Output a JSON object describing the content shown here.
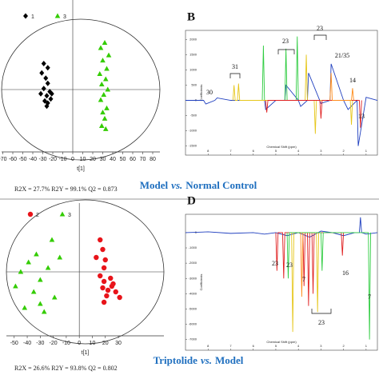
{
  "chart_data": [
    {
      "type": "scatter",
      "xlabel": "t[1]",
      "stats": "R2X = 27.7% R2Y = 99.1% Q2 = 0.873",
      "caption": [
        "Model",
        "vs.",
        "Normal Control"
      ],
      "xlim": [
        -71.2,
        87.2
      ],
      "xticks": [
        -70,
        -60,
        -50,
        -40,
        -30,
        -20,
        -10,
        0,
        10,
        20,
        30,
        40,
        50,
        60,
        70,
        80
      ],
      "ylim": [
        -60,
        80
      ],
      "series": [
        {
          "name": "1",
          "color": "#000000",
          "marker": "diamond",
          "x": [
            -29,
            -25,
            -31,
            -27,
            -25,
            -29,
            -23,
            -26,
            -22,
            -28,
            -25,
            -21,
            -32,
            -26
          ],
          "values": [
            25,
            21,
            16,
            11,
            6,
            1,
            -2,
            -6,
            -9,
            -11,
            -13,
            -4,
            -4,
            -16
          ]
        },
        {
          "name": "3",
          "color": "#33cc00",
          "marker": "triangle",
          "x": [
            32,
            28,
            36,
            30,
            34,
            27,
            33,
            29,
            35,
            31,
            28,
            34,
            30,
            32,
            29,
            33
          ],
          "values": [
            45,
            40,
            33,
            28,
            20,
            15,
            10,
            5,
            0,
            -5,
            -10,
            -18,
            -22,
            -28,
            -35,
            -38
          ]
        }
      ]
    },
    {
      "type": "line",
      "panel": "B",
      "xlabel": "Chemical Shift (ppm)",
      "ylabel": "Coefficients",
      "xlim": [
        9,
        0.5
      ],
      "xticks": [
        8,
        7,
        6,
        5,
        4,
        3,
        2,
        1
      ],
      "ylim": [
        -1800,
        2300
      ],
      "yticks": [
        -1500,
        -1000,
        -500,
        0,
        500,
        1000,
        1500,
        2000
      ],
      "annotations": [
        "30",
        "31",
        "23",
        "23",
        "21/35",
        "14",
        "13"
      ],
      "series": [
        {
          "color": "#1f3fbf",
          "x": [
            9,
            8.2,
            8.1,
            7.7,
            7.6,
            7.0,
            6.0,
            5.5,
            5.45,
            5.0,
            4.6,
            4.55,
            4.0,
            3.9,
            3.6,
            3.55,
            3.0,
            2.6,
            2.55,
            2.0,
            1.8,
            1.4,
            1.35,
            1.0,
            0.5
          ],
          "values": [
            0,
            0,
            -120,
            0,
            80,
            0,
            0,
            0,
            -300,
            0,
            0,
            500,
            0,
            -200,
            0,
            900,
            -100,
            0,
            1200,
            0,
            -300,
            0,
            -1500,
            100,
            0
          ]
        },
        {
          "color": "#2ecc40",
          "x": [
            5.6,
            5.55,
            5.5,
            4.6,
            4.55,
            4.5,
            4.1,
            4.05,
            4.0
          ],
          "values": [
            0,
            1800,
            0,
            0,
            1700,
            0,
            0,
            2100,
            0
          ]
        },
        {
          "color": "#e6c619",
          "x": [
            6.9,
            6.85,
            6.8,
            6.7,
            6.65,
            6.6,
            3.7,
            3.65,
            3.6,
            3.3,
            3.25,
            3.2,
            1.7,
            1.65,
            1.6
          ],
          "values": [
            0,
            500,
            0,
            0,
            550,
            0,
            0,
            1500,
            0,
            0,
            -1100,
            0,
            0,
            -800,
            0
          ]
        },
        {
          "color": "#e02020",
          "x": [
            5.45,
            5.4,
            5.35,
            3.05,
            3.0,
            2.95,
            1.3,
            1.25,
            1.2
          ],
          "values": [
            0,
            -400,
            0,
            0,
            -600,
            0,
            0,
            -900,
            0
          ]
        },
        {
          "color": "#ff8c1a",
          "x": [
            2.6,
            2.55,
            2.5,
            1.65,
            1.6,
            1.55
          ],
          "values": [
            0,
            900,
            0,
            0,
            400,
            0
          ]
        }
      ]
    },
    {
      "type": "scatter",
      "xlabel": "t[1]",
      "stats": "R2X = 26.6% R2Y = 93.8% Q2 = 0.802",
      "caption": [
        "Triptolide",
        "vs.",
        "Model"
      ],
      "xlim": [
        -56,
        65
      ],
      "xticks": [
        -50,
        -40,
        -30,
        -20,
        -10,
        0,
        10,
        20,
        30
      ],
      "ylim": [
        -80,
        78
      ],
      "series": [
        {
          "name": "2",
          "color": "#e8141a",
          "marker": "circle",
          "x": [
            16,
            18,
            13,
            20,
            19,
            16,
            24,
            19,
            25,
            18,
            22,
            26,
            28,
            21,
            19,
            31
          ],
          "values": [
            40,
            28,
            18,
            15,
            5,
            -5,
            -8,
            -12,
            -18,
            -20,
            -23,
            -15,
            -25,
            -30,
            -38,
            -32
          ]
        },
        {
          "name": "3",
          "color": "#33cc00",
          "marker": "triangle",
          "x": [
            -21,
            -33,
            -39,
            -15,
            -30,
            -49,
            -35,
            -19,
            -42,
            -27,
            -45,
            -24,
            -30
          ],
          "values": [
            40,
            22,
            12,
            18,
            -10,
            -18,
            -25,
            -32,
            -45,
            -50,
            0,
            5,
            -40
          ]
        }
      ]
    },
    {
      "type": "line",
      "panel": "D",
      "xlabel": "Chemical Shift (ppm)",
      "ylabel": "Coefficients",
      "xlim": [
        9,
        0.5
      ],
      "xticks": [
        8,
        7,
        6,
        5,
        4,
        3,
        2,
        1
      ],
      "ylim": [
        -7700,
        1200
      ],
      "yticks": [
        -7000,
        -6000,
        -5000,
        -4000,
        -3000,
        -2000,
        -1000,
        0
      ],
      "annotations": [
        "23",
        "23",
        "7",
        "23",
        "16",
        "7"
      ],
      "series": [
        {
          "color": "#1f3fbf",
          "x": [
            9,
            8,
            7,
            6,
            5.5,
            5,
            4.5,
            4,
            3.5,
            3,
            2.5,
            2,
            1.5,
            1.3,
            1.25,
            1.2,
            1,
            0.5
          ],
          "values": [
            0,
            50,
            -50,
            0,
            -100,
            0,
            -200,
            0,
            -300,
            100,
            0,
            -200,
            0,
            0,
            1000,
            0,
            -100,
            0
          ]
        },
        {
          "color": "#e02020",
          "x": [
            5.0,
            4.95,
            4.9,
            4.7,
            4.65,
            4.6,
            3.8,
            3.75,
            3.7,
            3.6,
            3.55,
            3.5,
            3.4,
            3.35,
            3.3,
            2.1,
            2.05,
            2.0
          ],
          "values": [
            0,
            -2500,
            0,
            0,
            -3000,
            0,
            0,
            -3500,
            0,
            0,
            -4800,
            0,
            0,
            -4000,
            0,
            0,
            -1500,
            0
          ]
        },
        {
          "color": "#e6c619",
          "x": [
            4.3,
            4.25,
            4.2,
            3.2,
            3.15,
            3.1
          ],
          "values": [
            0,
            -6500,
            0,
            0,
            -5200,
            0
          ]
        },
        {
          "color": "#2ecc40",
          "x": [
            4.5,
            4.45,
            4.4,
            3.0,
            2.95,
            2.9,
            0.9,
            0.85,
            0.8
          ],
          "values": [
            0,
            -3000,
            0,
            0,
            -2500,
            0,
            0,
            -7000,
            0
          ]
        },
        {
          "color": "#ff8c1a",
          "x": [
            3.9,
            3.85,
            3.8
          ],
          "values": [
            0,
            -4200,
            0
          ]
        }
      ]
    }
  ]
}
